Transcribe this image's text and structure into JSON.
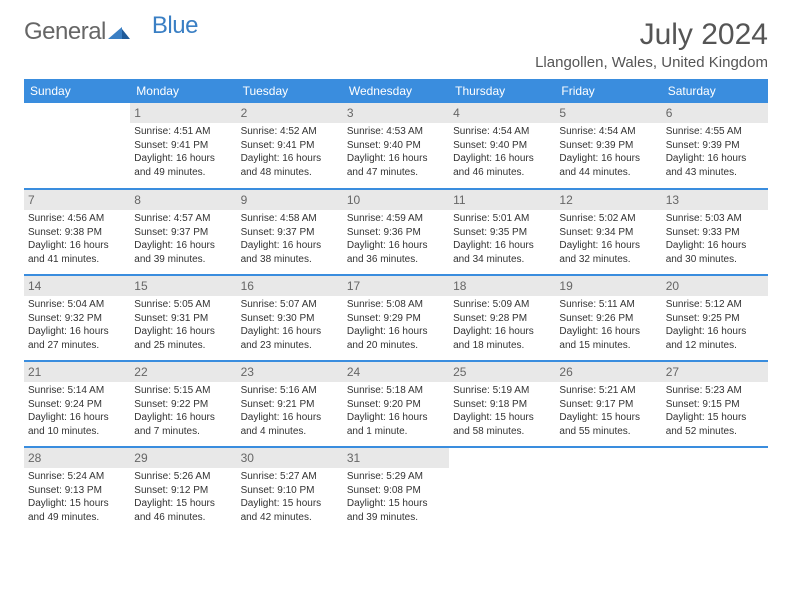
{
  "brand": {
    "general": "General",
    "blue": "Blue"
  },
  "header": {
    "month": "July 2024",
    "location": "Llangollen, Wales, United Kingdom"
  },
  "colors": {
    "accent": "#3a8dde",
    "logo_blue": "#3a7fc4",
    "text": "#333333",
    "muted": "#666666",
    "day_bg": "#e8e8e8",
    "background": "#ffffff"
  },
  "weekdays": [
    "Sunday",
    "Monday",
    "Tuesday",
    "Wednesday",
    "Thursday",
    "Friday",
    "Saturday"
  ],
  "weeks": [
    [
      null,
      {
        "n": "1",
        "sr": "4:51 AM",
        "ss": "9:41 PM",
        "dl": "16 hours and 49 minutes."
      },
      {
        "n": "2",
        "sr": "4:52 AM",
        "ss": "9:41 PM",
        "dl": "16 hours and 48 minutes."
      },
      {
        "n": "3",
        "sr": "4:53 AM",
        "ss": "9:40 PM",
        "dl": "16 hours and 47 minutes."
      },
      {
        "n": "4",
        "sr": "4:54 AM",
        "ss": "9:40 PM",
        "dl": "16 hours and 46 minutes."
      },
      {
        "n": "5",
        "sr": "4:54 AM",
        "ss": "9:39 PM",
        "dl": "16 hours and 44 minutes."
      },
      {
        "n": "6",
        "sr": "4:55 AM",
        "ss": "9:39 PM",
        "dl": "16 hours and 43 minutes."
      }
    ],
    [
      {
        "n": "7",
        "sr": "4:56 AM",
        "ss": "9:38 PM",
        "dl": "16 hours and 41 minutes."
      },
      {
        "n": "8",
        "sr": "4:57 AM",
        "ss": "9:37 PM",
        "dl": "16 hours and 39 minutes."
      },
      {
        "n": "9",
        "sr": "4:58 AM",
        "ss": "9:37 PM",
        "dl": "16 hours and 38 minutes."
      },
      {
        "n": "10",
        "sr": "4:59 AM",
        "ss": "9:36 PM",
        "dl": "16 hours and 36 minutes."
      },
      {
        "n": "11",
        "sr": "5:01 AM",
        "ss": "9:35 PM",
        "dl": "16 hours and 34 minutes."
      },
      {
        "n": "12",
        "sr": "5:02 AM",
        "ss": "9:34 PM",
        "dl": "16 hours and 32 minutes."
      },
      {
        "n": "13",
        "sr": "5:03 AM",
        "ss": "9:33 PM",
        "dl": "16 hours and 30 minutes."
      }
    ],
    [
      {
        "n": "14",
        "sr": "5:04 AM",
        "ss": "9:32 PM",
        "dl": "16 hours and 27 minutes."
      },
      {
        "n": "15",
        "sr": "5:05 AM",
        "ss": "9:31 PM",
        "dl": "16 hours and 25 minutes."
      },
      {
        "n": "16",
        "sr": "5:07 AM",
        "ss": "9:30 PM",
        "dl": "16 hours and 23 minutes."
      },
      {
        "n": "17",
        "sr": "5:08 AM",
        "ss": "9:29 PM",
        "dl": "16 hours and 20 minutes."
      },
      {
        "n": "18",
        "sr": "5:09 AM",
        "ss": "9:28 PM",
        "dl": "16 hours and 18 minutes."
      },
      {
        "n": "19",
        "sr": "5:11 AM",
        "ss": "9:26 PM",
        "dl": "16 hours and 15 minutes."
      },
      {
        "n": "20",
        "sr": "5:12 AM",
        "ss": "9:25 PM",
        "dl": "16 hours and 12 minutes."
      }
    ],
    [
      {
        "n": "21",
        "sr": "5:14 AM",
        "ss": "9:24 PM",
        "dl": "16 hours and 10 minutes."
      },
      {
        "n": "22",
        "sr": "5:15 AM",
        "ss": "9:22 PM",
        "dl": "16 hours and 7 minutes."
      },
      {
        "n": "23",
        "sr": "5:16 AM",
        "ss": "9:21 PM",
        "dl": "16 hours and 4 minutes."
      },
      {
        "n": "24",
        "sr": "5:18 AM",
        "ss": "9:20 PM",
        "dl": "16 hours and 1 minute."
      },
      {
        "n": "25",
        "sr": "5:19 AM",
        "ss": "9:18 PM",
        "dl": "15 hours and 58 minutes."
      },
      {
        "n": "26",
        "sr": "5:21 AM",
        "ss": "9:17 PM",
        "dl": "15 hours and 55 minutes."
      },
      {
        "n": "27",
        "sr": "5:23 AM",
        "ss": "9:15 PM",
        "dl": "15 hours and 52 minutes."
      }
    ],
    [
      {
        "n": "28",
        "sr": "5:24 AM",
        "ss": "9:13 PM",
        "dl": "15 hours and 49 minutes."
      },
      {
        "n": "29",
        "sr": "5:26 AM",
        "ss": "9:12 PM",
        "dl": "15 hours and 46 minutes."
      },
      {
        "n": "30",
        "sr": "5:27 AM",
        "ss": "9:10 PM",
        "dl": "15 hours and 42 minutes."
      },
      {
        "n": "31",
        "sr": "5:29 AM",
        "ss": "9:08 PM",
        "dl": "15 hours and 39 minutes."
      },
      null,
      null,
      null
    ]
  ],
  "labels": {
    "sunrise": "Sunrise: ",
    "sunset": "Sunset: ",
    "daylight": "Daylight: "
  }
}
